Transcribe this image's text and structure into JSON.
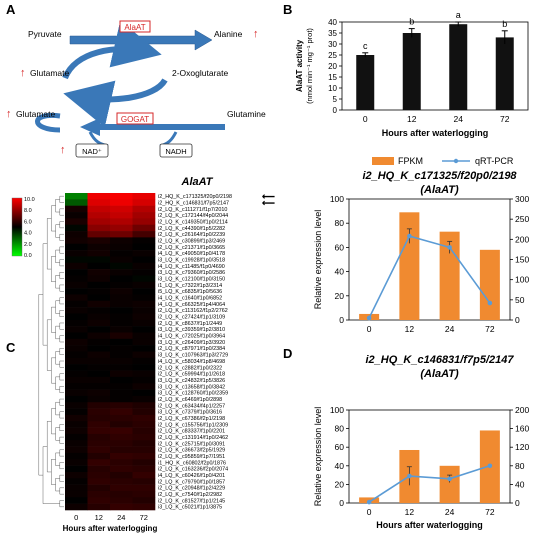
{
  "panel_letters": {
    "a": "A",
    "b": "B",
    "c": "C",
    "d": "D"
  },
  "pathway": {
    "pyruvate": "Pyruvate",
    "alanine": "Alanine",
    "glutamate_left": "Glutamate",
    "oxoglutarate": "2-Oxoglutarate",
    "glutamate_bottom": "Glutamate",
    "glutamine": "Glutamine",
    "nad": "NAD⁺",
    "nadh": "NADH",
    "alaat": "AlaAT",
    "gogat": "GOGAT",
    "up_arrow": "↑",
    "colors": {
      "enzyme": "#d62728",
      "arrow": "#3a78b8",
      "up": "#d62728"
    }
  },
  "heatmap": {
    "title": "AlaAT",
    "xlabel": "Hours after waterlogging",
    "columns": [
      "0",
      "12",
      "24",
      "72"
    ],
    "scale_labels": [
      "10.0",
      "8.0",
      "6.0",
      "4.0",
      "2.0",
      "0.0"
    ],
    "marker": "⟵",
    "genes": [
      "i2_HQ_K_c171325/f20p0/2198",
      "i2_HQ_K_c146831/f7p5/2147",
      "i2_LQ_K_c111271/f1p7/2010",
      "i2_LQ_K_c172144/f4p0/2044",
      "i2_LQ_K_c149350/f1p0/2114",
      "i2_LQ_K_c44390/f1p5/2282",
      "i2_LQ_K_c26164/f1p0/2239",
      "i2_LQ_K_c30899/f1p3/2469",
      "i2_LQ_K_c21371/f1p0/3665",
      "i4_LQ_K_c49050/f1p0/4178",
      "i3_LQ_K_c19928/f1p0/3518",
      "i4_LQ_K_c11485/f1p0/4690",
      "i3_LQ_K_c79360/f1p0/2586",
      "i3_LQ_K_c12100/f1p0/3150",
      "i1_LQ_K_c7322/f1p3/2314",
      "i5_LQ_K_c6835/f1p0/5636",
      "i4_LQ_K_c1640/f1p0/6852",
      "i4_LQ_K_c66325/f1p4/4064",
      "i2_LQ_K_c113162/f1p2/2762",
      "i2_LQ_K_c27424/f1p1/3109",
      "i2_LQ_K_c8637/f1p1/2449",
      "i3_LQ_K_c39359/f1p2/3810",
      "i4_LQ_K_c72025/f1p0/3964",
      "i3_LQ_K_c26409/f1p3/3920",
      "i2_LQ_K_c87971/f1p0/2384",
      "i3_LQ_K_c107963/f1p3/2729",
      "i4_LQ_K_c58034/f1p8/4698",
      "i2_LQ_K_c2882/f1p0/2322",
      "i2_LQ_K_c59994/f1p1/2618",
      "i3_LQ_K_c24832/f1p5/3826",
      "i3_LQ_K_c13658/f1p0/3842",
      "i3_LQ_K_c128760/f1p0/2359",
      "i2_LQ_K_c6469/f1p0/2898",
      "i2_LQ_K_c63434/f4p1/2257",
      "i3_LQ_K_c7379/f1p0/3616",
      "i2_LQ_K_c67386/f2p1/2198",
      "i2_LQ_K_c155756/f1p1/2309",
      "i2_LQ_K_c83337/f1p0/2201",
      "i2_LQ_K_c131914/f1p0/2462",
      "i2_LQ_K_c25715/f1p0/3091",
      "i2_LQ_K_c36673/f2p5/1929",
      "i2_LQ_K_c95859/f1p7/1951",
      "i1_HQ_K_c60802/f2p0/1876",
      "i2_LQ_K_c163236/f2p0/2074",
      "i4_LQ_K_c60426/f1p0/4201",
      "i2_LQ_K_c79790/f1p0/1857",
      "i2_LQ_K_c20948/f1p2/4229",
      "i2_LQ_K_c7540/f1p2/2982",
      "i2_LQ_K_c81527/f1p1/2145",
      "i3_LQ_K_c5021/f1p1/3875"
    ],
    "values": [
      [
        2.0,
        9.6,
        9.8,
        9.4
      ],
      [
        2.6,
        9.2,
        9.6,
        9.0
      ],
      [
        4.5,
        8.6,
        8.9,
        8.2
      ],
      [
        4.2,
        8.2,
        8.6,
        7.8
      ],
      [
        4.6,
        7.8,
        8.1,
        7.5
      ],
      [
        3.9,
        7.2,
        7.5,
        6.6
      ],
      [
        4.3,
        6.3,
        6.6,
        5.6
      ],
      [
        4.4,
        4.6,
        4.3,
        4.1
      ],
      [
        4.0,
        4.3,
        4.2,
        4.0
      ],
      [
        4.2,
        4.4,
        4.1,
        4.2
      ],
      [
        3.9,
        3.9,
        4.2,
        4.0
      ],
      [
        4.3,
        4.0,
        3.9,
        4.2
      ],
      [
        4.0,
        4.4,
        4.2,
        4.1
      ],
      [
        4.1,
        4.3,
        4.0,
        3.9
      ],
      [
        4.2,
        4.0,
        4.1,
        4.2
      ],
      [
        4.0,
        4.1,
        4.3,
        4.0
      ],
      [
        4.3,
        4.0,
        4.2,
        4.1
      ],
      [
        4.1,
        4.4,
        4.2,
        4.3
      ],
      [
        4.2,
        4.1,
        4.0,
        4.2
      ],
      [
        4.0,
        4.2,
        4.1,
        4.3
      ],
      [
        4.1,
        4.3,
        4.1,
        4.2
      ],
      [
        4.2,
        4.0,
        4.2,
        4.0
      ],
      [
        4.0,
        4.3,
        4.6,
        4.2
      ],
      [
        4.3,
        4.1,
        4.0,
        4.2
      ],
      [
        4.2,
        4.0,
        4.1,
        4.0
      ],
      [
        4.1,
        4.3,
        4.1,
        4.3
      ],
      [
        4.2,
        4.2,
        4.2,
        4.1
      ],
      [
        4.0,
        4.1,
        4.1,
        4.0
      ],
      [
        4.1,
        4.0,
        4.3,
        4.2
      ],
      [
        4.2,
        4.2,
        4.0,
        4.1
      ],
      [
        4.1,
        4.1,
        4.1,
        4.3
      ],
      [
        4.2,
        4.3,
        4.1,
        4.0
      ],
      [
        4.0,
        4.2,
        4.1,
        4.2
      ],
      [
        4.2,
        4.8,
        4.9,
        4.7
      ],
      [
        4.1,
        5.0,
        5.2,
        4.8
      ],
      [
        4.4,
        4.9,
        5.0,
        5.1
      ],
      [
        4.2,
        5.1,
        4.8,
        5.0
      ],
      [
        4.3,
        5.2,
        5.3,
        4.9
      ],
      [
        4.1,
        4.9,
        5.1,
        5.0
      ],
      [
        4.2,
        5.0,
        5.0,
        4.8
      ],
      [
        4.3,
        5.1,
        4.9,
        4.9
      ],
      [
        4.1,
        4.8,
        5.2,
        5.1
      ],
      [
        4.2,
        5.2,
        5.0,
        4.8
      ],
      [
        4.0,
        4.9,
        5.1,
        5.0
      ],
      [
        4.3,
        5.0,
        4.8,
        5.2
      ],
      [
        4.1,
        5.1,
        5.0,
        4.9
      ],
      [
        4.2,
        4.8,
        5.1,
        5.1
      ],
      [
        4.2,
        5.0,
        4.9,
        5.0
      ],
      [
        4.0,
        5.1,
        5.0,
        4.8
      ],
      [
        4.3,
        4.9,
        5.2,
        5.1
      ]
    ]
  },
  "chart_data": [
    {
      "id": "B",
      "type": "bar",
      "categories": [
        "0",
        "12",
        "24",
        "72"
      ],
      "values": [
        25,
        35,
        39,
        33
      ],
      "errors": [
        1,
        2,
        1,
        3
      ],
      "significance": [
        "c",
        "b",
        "a",
        "b"
      ],
      "xlabel": "Hours after waterlogging",
      "ylabel": "AlaAT activity",
      "ylabel2": "(nmol min⁻¹ mg⁻¹ prot)",
      "ylim": [
        0,
        40
      ],
      "yticks": [
        0,
        5,
        10,
        15,
        20,
        25,
        30,
        35,
        40
      ],
      "bar_color": "#111111"
    },
    {
      "id": "C",
      "type": "bar+line",
      "title": "i2_HQ_K_c171325/f20p0/2198",
      "subtitle": "(AlaAT)",
      "legend": {
        "bar": "FPKM",
        "line": "qRT-PCR",
        "placement": "top"
      },
      "categories": [
        "0",
        "12",
        "24",
        "72"
      ],
      "bars": [
        5,
        89,
        73,
        58
      ],
      "line": [
        5,
        208,
        180,
        42
      ],
      "line_errors": [
        0,
        18,
        15,
        0
      ],
      "ylabel": "Relative expression level",
      "ylim": [
        0,
        100
      ],
      "yticks": [
        0,
        20,
        40,
        60,
        80,
        100
      ],
      "y2lim": [
        0,
        300
      ],
      "y2ticks": [
        0,
        50,
        100,
        150,
        200,
        250,
        300
      ],
      "bar_color": "#f08a30",
      "line_color": "#5b9bd5"
    },
    {
      "id": "D",
      "type": "bar+line",
      "title": "i2_HQ_K_c146831/f7p5/2147",
      "subtitle": "(AlaAT)",
      "categories": [
        "0",
        "12",
        "24",
        "72"
      ],
      "bars": [
        6,
        57,
        40,
        78
      ],
      "line": [
        2,
        58,
        52,
        80
      ],
      "line_errors": [
        0,
        20,
        8,
        0
      ],
      "ylabel": "Relative expression level",
      "ylim": [
        0,
        100
      ],
      "yticks": [
        0,
        20,
        40,
        60,
        80,
        100
      ],
      "y2lim": [
        0,
        200
      ],
      "y2ticks": [
        0,
        40,
        80,
        120,
        160,
        200
      ],
      "xlabel": "Hours after waterlogging",
      "bar_color": "#f08a30",
      "line_color": "#5b9bd5"
    }
  ]
}
